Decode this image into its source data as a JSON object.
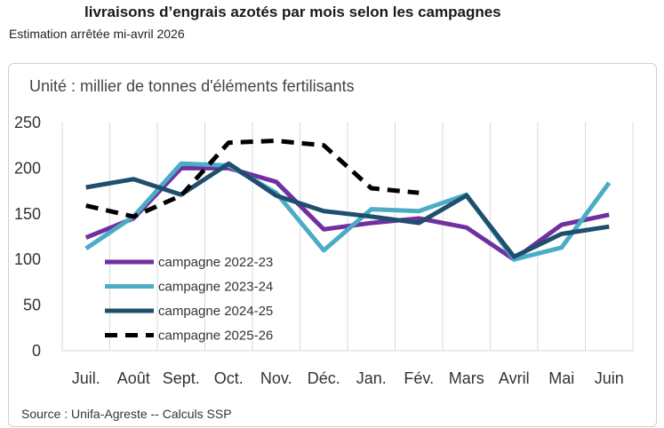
{
  "header": {
    "title": "livraisons d’engrais azotés par mois selon les campagnes",
    "subtitle": "Estimation arrêtée mi-avril 2026"
  },
  "unit_label": "Unité : millier de tonnes d'éléments fertilisants",
  "source": "Source : Unifa-Agreste -- Calculs SSP",
  "chart_data": {
    "type": "line",
    "categories": [
      "Juil.",
      "Août",
      "Sept.",
      "Oct.",
      "Nov.",
      "Déc.",
      "Jan.",
      "Fév.",
      "Mars",
      "Avril",
      "Mai",
      "Juin"
    ],
    "ylim": [
      0,
      250
    ],
    "yticks": [
      0,
      50,
      100,
      150,
      200,
      250
    ],
    "grid": "vertical",
    "legend_position": "bottom-left",
    "series": [
      {
        "name": "campagne 2022-23",
        "color": "#7030a0",
        "dash": "solid",
        "values": [
          124,
          145,
          200,
          200,
          185,
          133,
          140,
          145,
          135,
          100,
          138,
          149
        ]
      },
      {
        "name": "campagne 2023-24",
        "color": "#4bacc6",
        "dash": "solid",
        "values": [
          112,
          147,
          205,
          203,
          173,
          110,
          155,
          153,
          171,
          100,
          113,
          184
        ]
      },
      {
        "name": "campagne 2024-25",
        "color": "#1f4e6e",
        "dash": "solid",
        "values": [
          179,
          188,
          171,
          205,
          170,
          153,
          147,
          140,
          170,
          103,
          128,
          136
        ]
      },
      {
        "name": "campagne 2025-26",
        "color": "#000000",
        "dash": "dashed",
        "values": [
          159,
          147,
          170,
          228,
          230,
          225,
          178,
          173,
          null,
          null,
          null,
          null
        ]
      }
    ]
  }
}
